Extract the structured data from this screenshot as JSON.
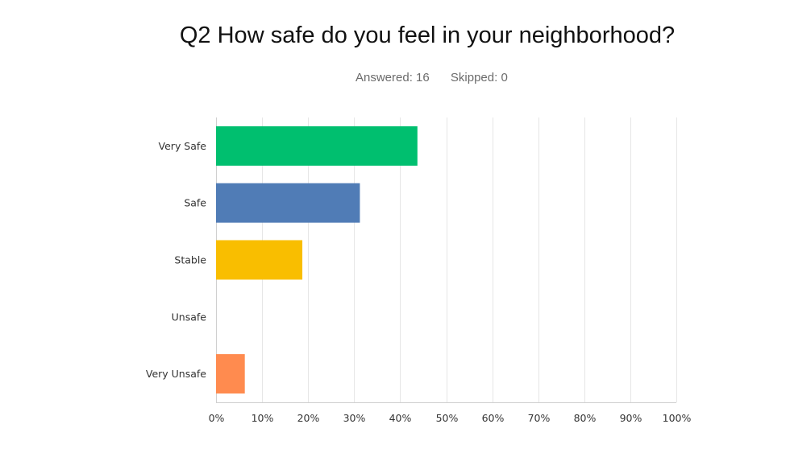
{
  "header": {
    "title": "Q2 How safe do you feel in your neighborhood?",
    "answered": "Answered: 16",
    "skipped": "Skipped: 0"
  },
  "chart_data": {
    "type": "bar",
    "orientation": "horizontal",
    "title": "Q2 How safe do you feel in your neighborhood?",
    "categories": [
      "Very Safe",
      "Safe",
      "Stable",
      "Unsafe",
      "Very Unsafe"
    ],
    "values": [
      43.75,
      31.25,
      18.75,
      0,
      6.25
    ],
    "colors": [
      "#00bf6f",
      "#507cb6",
      "#f9be00",
      "#6bc8cd",
      "#ff8b4f"
    ],
    "xlim": [
      0,
      100
    ],
    "xticks": [
      "0%",
      "10%",
      "20%",
      "30%",
      "40%",
      "50%",
      "60%",
      "70%",
      "80%",
      "90%",
      "100%"
    ],
    "grid": true,
    "legend": "none"
  }
}
